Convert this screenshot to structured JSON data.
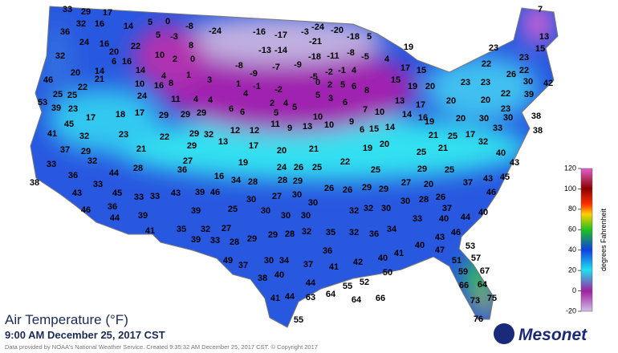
{
  "title": "Air Temperature (°F)",
  "subtitle": "9:00 AM December 25, 2017 CST",
  "credit": "Data provided by NOAA's National Weather Service. Created 9:35:32 AM December 25, 2017 CST. © Copyright 2017",
  "logo": "Mesonet",
  "colorbar": {
    "label": "degrees Fahrenheit",
    "ylim": [
      -20,
      120
    ],
    "yticks": [
      120,
      100,
      80,
      60,
      40,
      20,
      0,
      -20
    ]
  },
  "stations": [
    33,
    29,
    17,
    14,
    5,
    0,
    -8,
    -24,
    -16,
    -17,
    -3,
    -24,
    -20,
    -18,
    5,
    7,
    13,
    36,
    32,
    16,
    22,
    5,
    -3,
    8,
    -21,
    19,
    15,
    24,
    16,
    20,
    10,
    2,
    0,
    -13,
    -14,
    -18,
    -11,
    -8,
    -5,
    4,
    23,
    23,
    22,
    32,
    6,
    16,
    -8,
    -7,
    -9,
    -5,
    -2,
    -1,
    4,
    15,
    17,
    15,
    46,
    20,
    14,
    14,
    4,
    1,
    -9,
    3,
    23,
    26,
    22,
    30,
    42,
    53,
    25,
    22,
    21,
    10,
    16,
    8,
    1,
    -1,
    -2,
    0,
    2,
    5,
    6,
    8,
    19,
    20,
    23,
    22,
    39,
    25,
    24,
    11,
    4,
    4,
    4,
    5,
    3,
    6,
    39,
    23,
    6,
    2,
    4,
    5,
    13,
    17,
    20,
    20,
    23,
    45,
    17,
    18,
    17,
    29,
    29,
    29,
    6,
    5,
    11,
    10,
    7,
    10,
    14,
    16,
    20,
    30,
    30,
    38,
    41,
    32,
    23,
    22,
    29,
    32,
    12,
    12,
    9,
    13,
    10,
    9,
    6,
    15,
    14,
    19,
    21,
    25,
    17,
    33,
    38,
    37,
    29,
    21,
    29,
    13,
    17,
    20,
    21,
    19,
    20,
    25,
    21,
    32,
    40,
    33,
    32,
    28,
    27,
    19,
    22,
    43,
    36,
    44,
    36,
    16,
    34,
    28,
    24,
    26,
    25,
    28,
    29,
    25,
    27,
    29,
    25,
    43,
    45,
    38,
    33,
    43,
    45,
    33,
    33,
    43,
    39,
    46,
    30,
    27,
    30,
    26,
    26,
    29,
    29,
    20,
    26,
    37,
    46,
    46,
    36,
    44,
    39,
    39,
    25,
    30,
    30,
    30,
    30,
    32,
    32,
    30,
    30,
    28,
    37,
    44,
    40,
    41,
    35,
    32,
    27,
    39,
    33,
    28,
    29,
    29,
    28,
    32,
    35,
    32,
    36,
    34,
    33,
    40,
    43,
    46,
    40,
    49,
    37,
    30,
    34,
    37,
    41,
    42,
    40,
    41,
    47,
    36,
    53,
    57,
    51,
    59,
    67,
    50,
    38,
    40,
    66,
    64,
    44,
    55,
    52,
    41,
    44,
    63,
    64,
    64,
    66,
    73,
    75,
    55,
    76
  ]
}
